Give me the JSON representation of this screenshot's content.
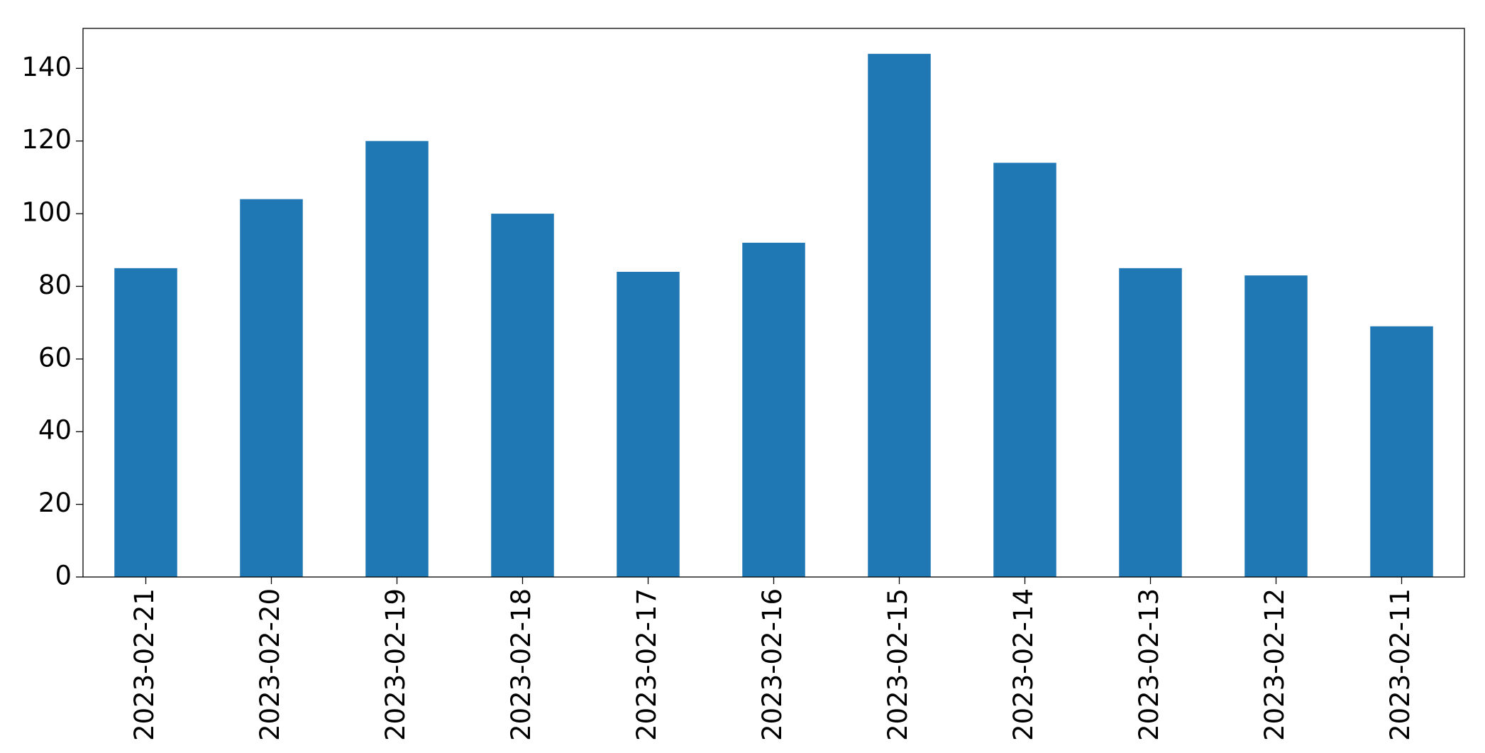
{
  "chart_data": {
    "type": "bar",
    "categories": [
      "2023-02-21",
      "2023-02-20",
      "2023-02-19",
      "2023-02-18",
      "2023-02-17",
      "2023-02-16",
      "2023-02-15",
      "2023-02-14",
      "2023-02-13",
      "2023-02-12",
      "2023-02-11"
    ],
    "values": [
      85,
      104,
      120,
      100,
      84,
      92,
      144,
      114,
      85,
      83,
      69
    ],
    "color": "#1f77b4",
    "ylim": [
      0,
      151
    ],
    "yticks": [
      0,
      20,
      40,
      60,
      80,
      100,
      120,
      140
    ],
    "grid": false
  }
}
